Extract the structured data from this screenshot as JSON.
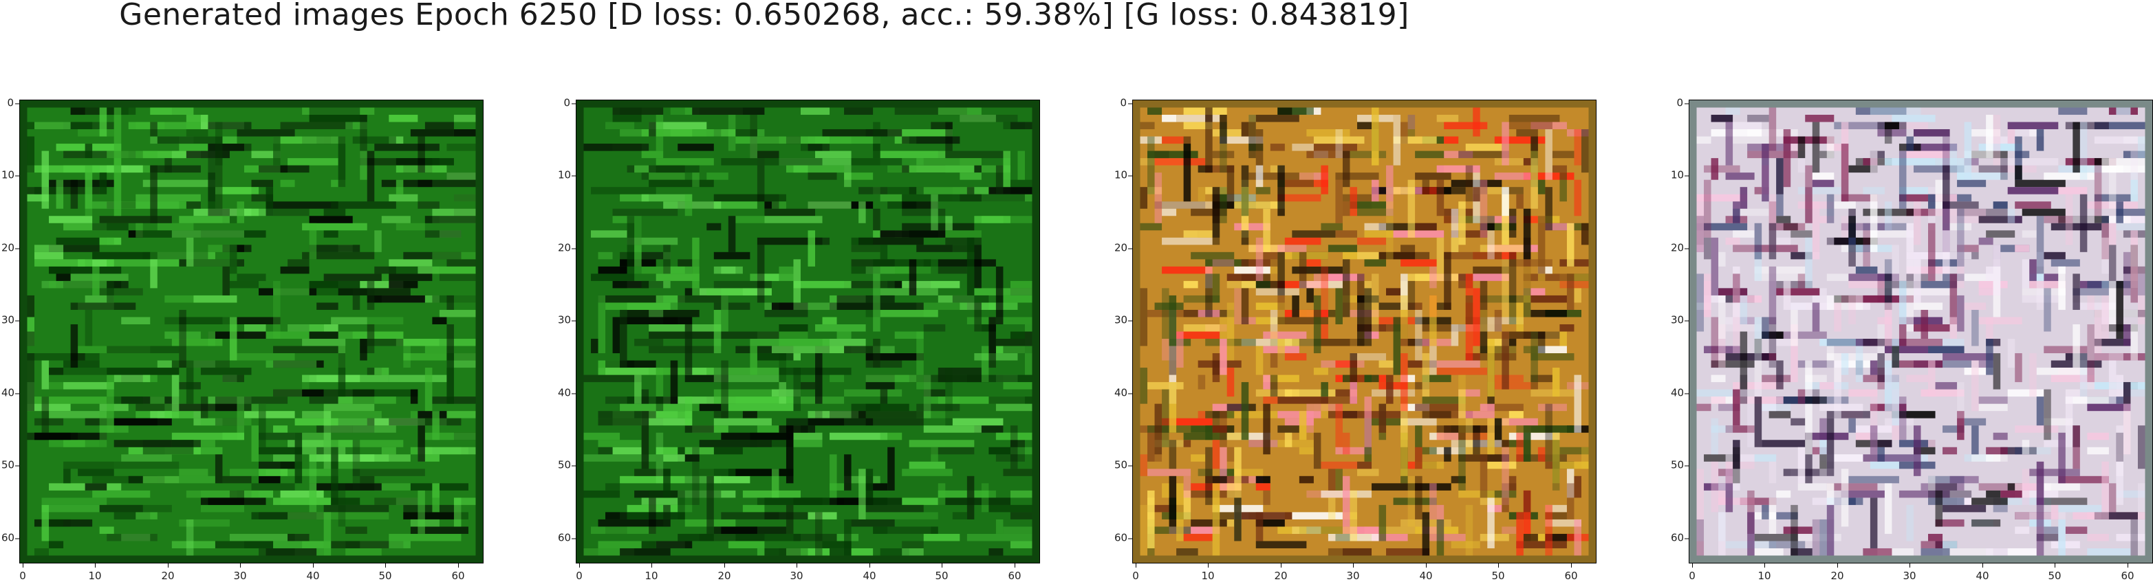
{
  "title": "Generated images Epoch 6250 [D loss: 0.650268, acc.: 59.38%] [G loss: 0.843819]",
  "ticks": {
    "y": [
      "0",
      "10",
      "20",
      "30",
      "40",
      "50",
      "60"
    ],
    "x": [
      "0",
      "10",
      "20",
      "30",
      "40",
      "50",
      "60"
    ]
  },
  "image_extent": [
    0,
    64
  ],
  "panels": [
    {
      "palette": "green",
      "base": "#1e7d18",
      "border": "#0f4a0d"
    },
    {
      "palette": "green",
      "base": "#1a7316",
      "border": "#0e450c"
    },
    {
      "palette": "orange",
      "base": "#c48a2a",
      "border": "#8a6a20"
    },
    {
      "palette": "pastel",
      "base": "#dcd2e0",
      "border": "#7a8a88"
    }
  ]
}
